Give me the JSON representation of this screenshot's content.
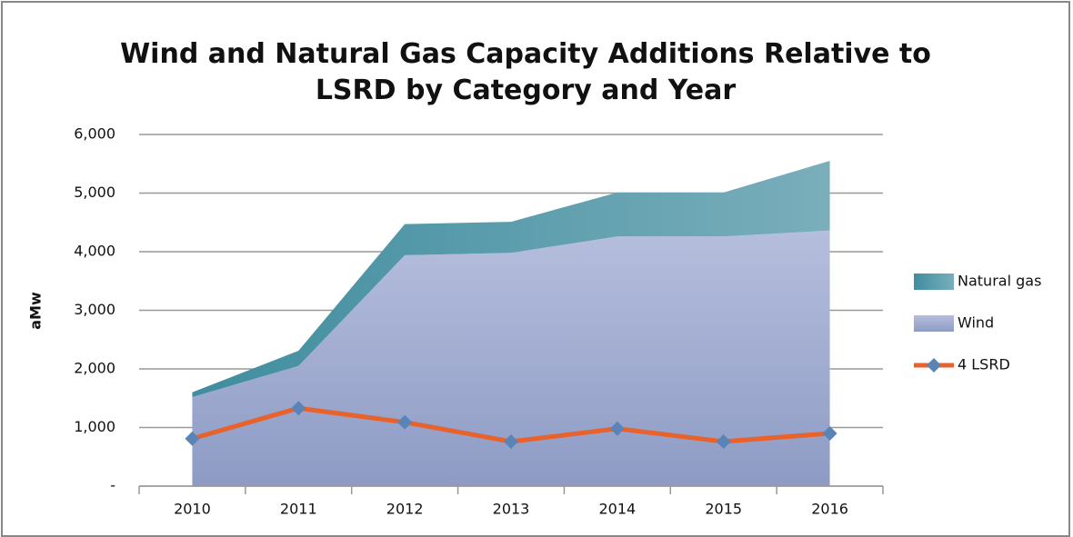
{
  "chart_data": {
    "type": "area",
    "title": "Wind and Natural Gas Capacity Additions Relative to LSRD by Category and Year",
    "y_label": "aMw",
    "categories": [
      "2010",
      "2011",
      "2012",
      "2013",
      "2014",
      "2015",
      "2016"
    ],
    "series": [
      {
        "name": "Natural gas",
        "type": "area",
        "color": "#4f98a8",
        "values": [
          80,
          260,
          530,
          530,
          750,
          750,
          1190
        ]
      },
      {
        "name": "Wind",
        "type": "area",
        "color": "#a9b3d5",
        "values": [
          1520,
          2050,
          3940,
          3980,
          4260,
          4260,
          4360
        ]
      },
      {
        "name": "4 LSRD",
        "type": "line",
        "color": "#e8622c",
        "marker_color": "#5b84b6",
        "values": [
          810,
          1330,
          1090,
          760,
          980,
          760,
          900
        ]
      }
    ],
    "stacked": true,
    "ylim": [
      0,
      6000
    ],
    "yticks": [
      {
        "value": 0,
        "label": "-"
      },
      {
        "value": 1000,
        "label": "1,000"
      },
      {
        "value": 2000,
        "label": "2,000"
      },
      {
        "value": 3000,
        "label": "3,000"
      },
      {
        "value": 4000,
        "label": "4,000"
      },
      {
        "value": 5000,
        "label": "5,000"
      },
      {
        "value": 6000,
        "label": "6,000"
      }
    ],
    "grid": true,
    "legend": "right"
  }
}
